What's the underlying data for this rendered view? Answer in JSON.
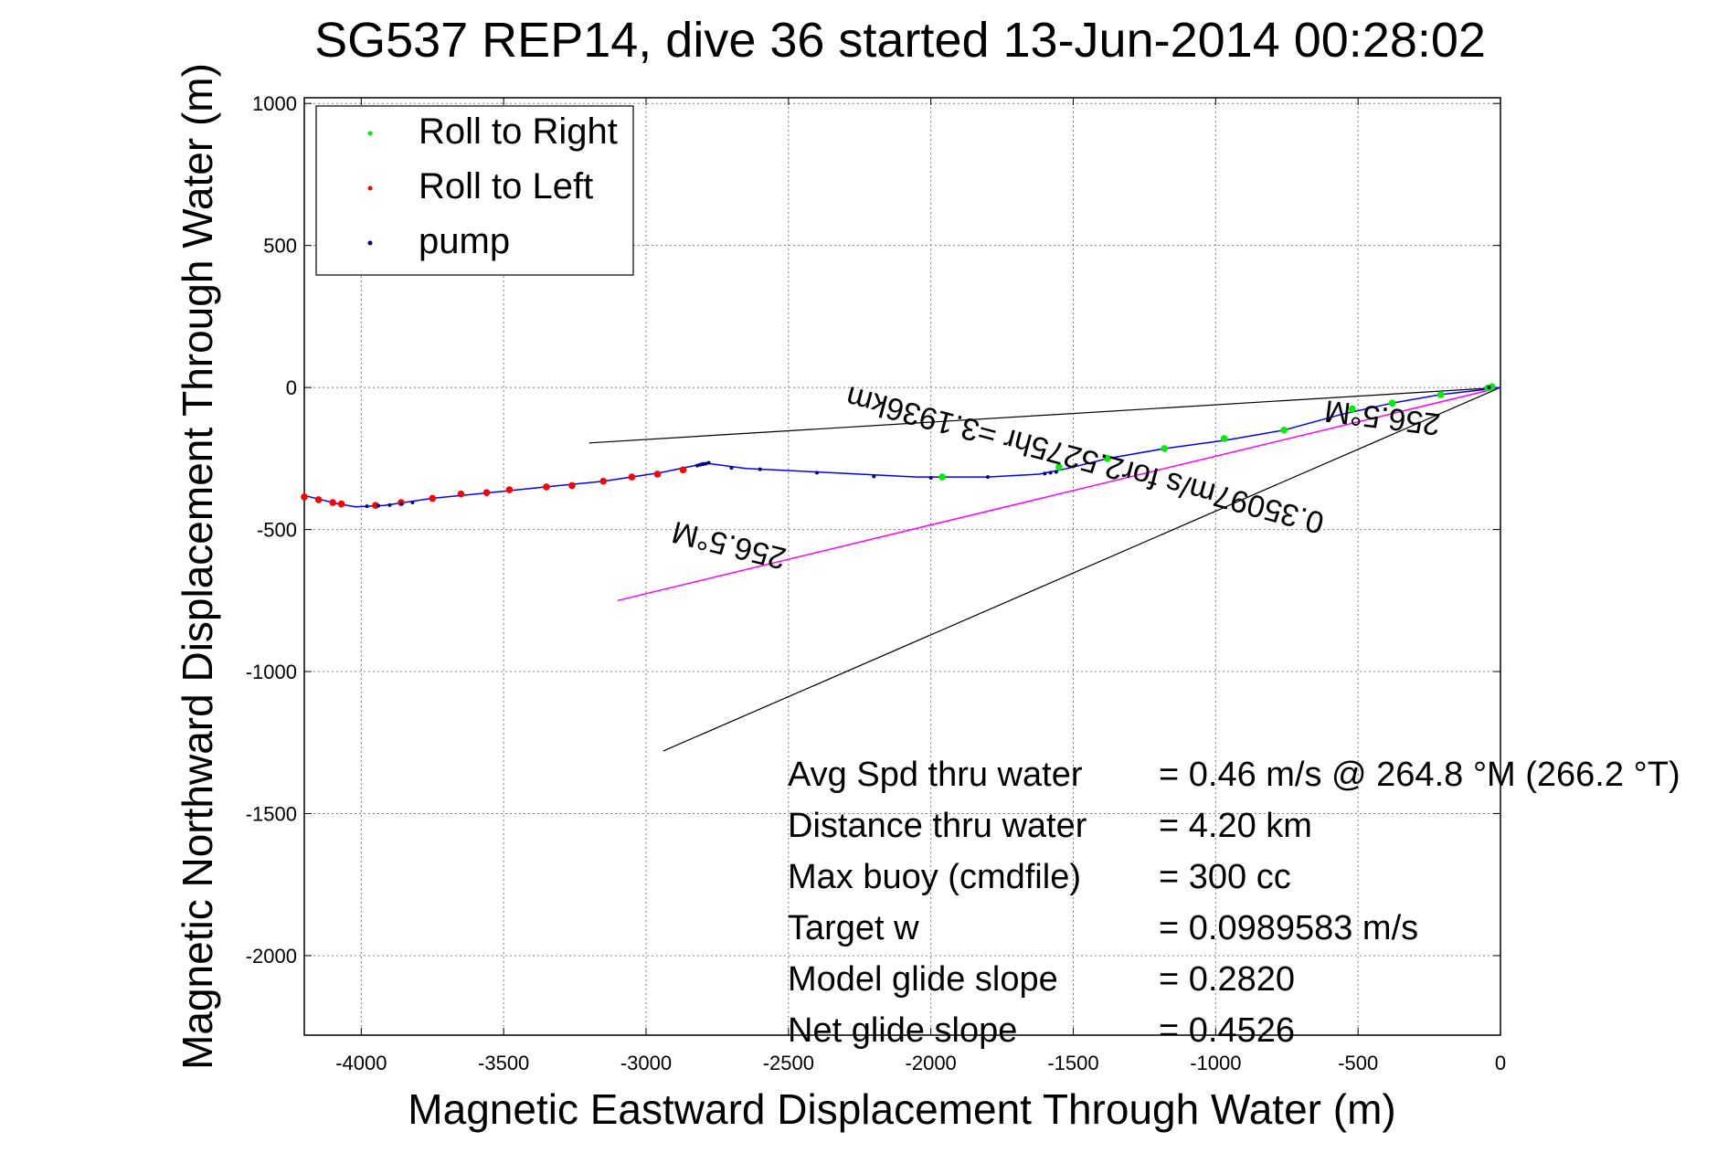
{
  "title": "SG537 REP14, dive 36 started 13-Jun-2014 00:28:02",
  "colors": {
    "track": "#0000ff",
    "roll_right": "#00ee00",
    "roll_left": "#ff0000",
    "pump": "#000080",
    "heading_line": "#ff00ff",
    "bounds": "#000000",
    "grid": "#808080"
  },
  "chart_data": {
    "type": "line",
    "xlabel": "Magnetic Eastward Displacement Through Water (m)",
    "ylabel": "Magnetic Northward Displacement Through Water (m)",
    "xlim": [
      -4200,
      0
    ],
    "ylim": [
      -2280,
      1020
    ],
    "xticks": [
      -4000,
      -3500,
      -3000,
      -2500,
      -2000,
      -1500,
      -1000,
      -500,
      0
    ],
    "yticks": [
      1000,
      500,
      0,
      -500,
      -1000,
      -1500,
      -2000
    ],
    "grid": true,
    "legend_position": "top-left",
    "legend": [
      {
        "label": "Roll to Right",
        "color": "#00ee00"
      },
      {
        "label": "Roll to Left",
        "color": "#ff0000"
      },
      {
        "label": "pump",
        "color": "#000080"
      }
    ],
    "track": {
      "x": [
        0,
        -80,
        -210,
        -380,
        -560,
        -760,
        -960,
        -1180,
        -1380,
        -1520,
        -1620,
        -1800,
        -2050,
        -2350,
        -2650,
        -2800,
        -2830,
        -2950,
        -3150,
        -3350,
        -3550,
        -3750,
        -3920,
        -4020,
        -4080,
        -4200
      ],
      "y": [
        0,
        -10,
        -25,
        -55,
        -95,
        -150,
        -185,
        -215,
        -250,
        -285,
        -305,
        -315,
        -315,
        -300,
        -285,
        -265,
        -275,
        -300,
        -330,
        -350,
        -370,
        -390,
        -415,
        -420,
        -410,
        -380
      ]
    },
    "roll_right": {
      "x": [
        -30,
        -45,
        -210,
        -380,
        -520,
        -760,
        -970,
        -1180,
        -1380,
        -1550,
        -1960
      ],
      "y": [
        3,
        -2,
        -25,
        -55,
        -75,
        -150,
        -180,
        -215,
        -250,
        -280,
        -315
      ]
    },
    "roll_left": {
      "x": [
        -2870,
        -2960,
        -3050,
        -3150,
        -3260,
        -3350,
        -3480,
        -3560,
        -3650,
        -3750,
        -3860,
        -3950,
        -4070,
        -4100,
        -4150,
        -4200
      ],
      "y": [
        -290,
        -305,
        -315,
        -330,
        -345,
        -350,
        -360,
        -370,
        -375,
        -390,
        -405,
        -415,
        -410,
        -405,
        -395,
        -385
      ]
    },
    "pump": {
      "x": [
        -40,
        -2780,
        -2790,
        -2800,
        -2810,
        -2820,
        -2700,
        -2600,
        -2400,
        -2200,
        -2000,
        -1800,
        -1600,
        -1580,
        -1560,
        -3980,
        -3940,
        -3900,
        -3860,
        -3820
      ],
      "y": [
        0,
        -265,
        -268,
        -270,
        -272,
        -275,
        -283,
        -288,
        -300,
        -313,
        -318,
        -315,
        -303,
        -300,
        -297,
        -418,
        -416,
        -414,
        -410,
        -405
      ]
    },
    "bound_upper": {
      "x": [
        0,
        -3200
      ],
      "y": [
        0,
        -195
      ]
    },
    "bound_lower": {
      "x": [
        0,
        -2940
      ],
      "y": [
        0,
        -1280
      ]
    },
    "heading_line": {
      "x": [
        0,
        -3100
      ],
      "y": [
        0,
        -750
      ]
    },
    "rotated_labels": [
      {
        "text": "256.5°M",
        "x": -410,
        "y": -70,
        "angle_deg": 187
      },
      {
        "text": "0.35097m/s for2.5275hr =3.1936km",
        "x": -1450,
        "y": -220,
        "angle_deg": 195
      },
      {
        "text": "256.5°M",
        "x": -2700,
        "y": -520,
        "angle_deg": 194
      }
    ],
    "stats": [
      {
        "label": "Avg Spd thru water",
        "value": "=  0.46 m/s @ 264.8 °M (266.2 °T)"
      },
      {
        "label": "Distance thru water",
        "value": "=  4.20 km"
      },
      {
        "label": "Max buoy (cmdfile)",
        "value": "= 300 cc"
      },
      {
        "label": "Target w",
        "value": "= 0.0989583 m/s"
      },
      {
        "label": "Model glide slope",
        "value": "= 0.2820"
      },
      {
        "label": "Net glide slope",
        "value": "= 0.4526"
      }
    ]
  }
}
